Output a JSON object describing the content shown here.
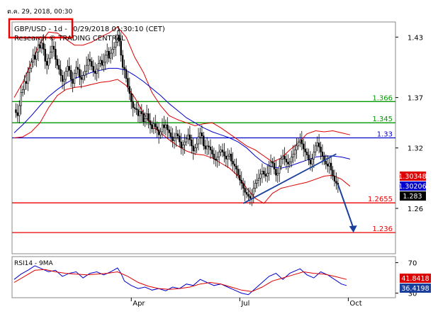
{
  "header": {
    "date_stamp": "ต.ค. 29, 2018, 00:30",
    "instrument": "GBP/USD - 1d -",
    "timestamp": "0/29/2018 01:30:10 (CET)",
    "source": "Research © TRADING CENTRAL"
  },
  "colors": {
    "background": "#f4f4f4",
    "candle": "#000000",
    "bollinger": "#dd0000",
    "moving_average": "#0000cc",
    "support_line": "#ee0000",
    "resistance_line": "#009900",
    "pivot_line": "#0000cc",
    "trend_arrow": "#1a3f9c",
    "highlight_box": "#ee0000"
  },
  "chart_data": [
    {
      "type": "candlestick",
      "title": "GBP/USD - 1d -",
      "ylim": [
        1.215,
        1.445
      ],
      "y_ticks": [
        1.43,
        1.37,
        1.32,
        1.26
      ],
      "x_tick_labels": [
        "Apr",
        "Jul",
        "Oct"
      ],
      "bars_per_month": 21,
      "close_series": [
        1.358,
        1.355,
        1.352,
        1.362,
        1.375,
        1.378,
        1.386,
        1.384,
        1.395,
        1.399,
        1.405,
        1.412,
        1.408,
        1.415,
        1.422,
        1.419,
        1.424,
        1.418,
        1.406,
        1.402,
        1.409,
        1.415,
        1.421,
        1.418,
        1.408,
        1.402,
        1.398,
        1.392,
        1.386,
        1.388,
        1.396,
        1.401,
        1.397,
        1.388,
        1.384,
        1.394,
        1.4,
        1.398,
        1.39,
        1.388,
        1.392,
        1.396,
        1.402,
        1.408,
        1.406,
        1.401,
        1.396,
        1.394,
        1.398,
        1.404,
        1.407,
        1.402,
        1.405,
        1.412,
        1.416,
        1.409,
        1.414,
        1.418,
        1.42,
        1.425,
        1.432,
        1.426,
        1.412,
        1.4,
        1.398,
        1.389,
        1.381,
        1.374,
        1.366,
        1.36,
        1.359,
        1.358,
        1.352,
        1.356,
        1.354,
        1.346,
        1.349,
        1.354,
        1.347,
        1.343,
        1.339,
        1.344,
        1.341,
        1.338,
        1.333,
        1.336,
        1.343,
        1.34,
        1.343,
        1.338,
        1.335,
        1.331,
        1.327,
        1.33,
        1.334,
        1.332,
        1.326,
        1.32,
        1.323,
        1.326,
        1.329,
        1.333,
        1.328,
        1.322,
        1.317,
        1.32,
        1.324,
        1.331,
        1.335,
        1.332,
        1.322,
        1.319,
        1.322,
        1.321,
        1.318,
        1.314,
        1.309,
        1.308,
        1.311,
        1.316,
        1.318,
        1.316,
        1.312,
        1.309,
        1.312,
        1.314,
        1.307,
        1.304,
        1.302,
        1.299,
        1.293,
        1.288,
        1.285,
        1.28,
        1.276,
        1.274,
        1.272,
        1.27,
        1.274,
        1.28,
        1.285,
        1.288,
        1.29,
        1.294,
        1.297,
        1.294,
        1.292,
        1.295,
        1.302,
        1.306,
        1.305,
        1.299,
        1.293,
        1.295,
        1.302,
        1.309,
        1.312,
        1.309,
        1.306,
        1.304,
        1.306,
        1.311,
        1.314,
        1.318,
        1.322,
        1.326,
        1.328,
        1.324,
        1.319,
        1.316,
        1.313,
        1.308,
        1.304,
        1.309,
        1.316,
        1.322,
        1.325,
        1.321,
        1.316,
        1.312,
        1.307,
        1.304,
        1.302,
        1.305,
        1.298,
        1.292,
        1.287,
        1.285,
        1.283
      ],
      "moving_average": [
        [
          0,
          1.335
        ],
        [
          5,
          1.343
        ],
        [
          10,
          1.352
        ],
        [
          15,
          1.362
        ],
        [
          20,
          1.371
        ],
        [
          25,
          1.378
        ],
        [
          30,
          1.384
        ],
        [
          35,
          1.389
        ],
        [
          40,
          1.392
        ],
        [
          45,
          1.395
        ],
        [
          50,
          1.397
        ],
        [
          55,
          1.399
        ],
        [
          60,
          1.399
        ],
        [
          65,
          1.397
        ],
        [
          70,
          1.392
        ],
        [
          75,
          1.386
        ],
        [
          80,
          1.379
        ],
        [
          85,
          1.372
        ],
        [
          90,
          1.364
        ],
        [
          95,
          1.357
        ],
        [
          100,
          1.35
        ],
        [
          105,
          1.345
        ],
        [
          110,
          1.34
        ],
        [
          115,
          1.336
        ],
        [
          120,
          1.333
        ],
        [
          125,
          1.33
        ],
        [
          130,
          1.326
        ],
        [
          135,
          1.32
        ],
        [
          140,
          1.312
        ],
        [
          145,
          1.305
        ],
        [
          150,
          1.301
        ],
        [
          155,
          1.3
        ],
        [
          160,
          1.302
        ],
        [
          165,
          1.305
        ],
        [
          170,
          1.308
        ],
        [
          175,
          1.311
        ],
        [
          180,
          1.312
        ],
        [
          185,
          1.312
        ],
        [
          190,
          1.311
        ],
        [
          195,
          1.309
        ]
      ],
      "bollinger_upper": [
        [
          0,
          1.37
        ],
        [
          5,
          1.385
        ],
        [
          10,
          1.405
        ],
        [
          15,
          1.424
        ],
        [
          20,
          1.435
        ],
        [
          25,
          1.434
        ],
        [
          30,
          1.428
        ],
        [
          35,
          1.422
        ],
        [
          40,
          1.422
        ],
        [
          45,
          1.425
        ],
        [
          50,
          1.43
        ],
        [
          55,
          1.434
        ],
        [
          60,
          1.44
        ],
        [
          65,
          1.43
        ],
        [
          70,
          1.41
        ],
        [
          75,
          1.395
        ],
        [
          80,
          1.375
        ],
        [
          85,
          1.362
        ],
        [
          90,
          1.352
        ],
        [
          95,
          1.348
        ],
        [
          100,
          1.345
        ],
        [
          105,
          1.342
        ],
        [
          110,
          1.344
        ],
        [
          115,
          1.345
        ],
        [
          120,
          1.34
        ],
        [
          125,
          1.334
        ],
        [
          130,
          1.328
        ],
        [
          135,
          1.322
        ],
        [
          140,
          1.318
        ],
        [
          145,
          1.312
        ],
        [
          150,
          1.306
        ],
        [
          155,
          1.31
        ],
        [
          160,
          1.318
        ],
        [
          165,
          1.325
        ],
        [
          170,
          1.334
        ],
        [
          175,
          1.337
        ],
        [
          180,
          1.336
        ],
        [
          185,
          1.337
        ],
        [
          190,
          1.335
        ],
        [
          195,
          1.333
        ]
      ],
      "bollinger_lower": [
        [
          0,
          1.33
        ],
        [
          5,
          1.331
        ],
        [
          10,
          1.336
        ],
        [
          15,
          1.345
        ],
        [
          20,
          1.36
        ],
        [
          25,
          1.372
        ],
        [
          30,
          1.378
        ],
        [
          35,
          1.38
        ],
        [
          40,
          1.381
        ],
        [
          45,
          1.383
        ],
        [
          50,
          1.385
        ],
        [
          55,
          1.386
        ],
        [
          60,
          1.388
        ],
        [
          65,
          1.382
        ],
        [
          70,
          1.37
        ],
        [
          75,
          1.355
        ],
        [
          80,
          1.342
        ],
        [
          85,
          1.335
        ],
        [
          90,
          1.328
        ],
        [
          95,
          1.322
        ],
        [
          100,
          1.317
        ],
        [
          105,
          1.314
        ],
        [
          110,
          1.313
        ],
        [
          115,
          1.31
        ],
        [
          120,
          1.305
        ],
        [
          125,
          1.3
        ],
        [
          130,
          1.292
        ],
        [
          135,
          1.28
        ],
        [
          140,
          1.27
        ],
        [
          145,
          1.265
        ],
        [
          150,
          1.275
        ],
        [
          155,
          1.28
        ],
        [
          160,
          1.282
        ],
        [
          165,
          1.284
        ],
        [
          170,
          1.286
        ],
        [
          175,
          1.289
        ],
        [
          180,
          1.292
        ],
        [
          185,
          1.293
        ],
        [
          190,
          1.289
        ],
        [
          195,
          1.282
        ]
      ],
      "levels": [
        {
          "value": 1.366,
          "label": "1.366",
          "kind": "resistance"
        },
        {
          "value": 1.345,
          "label": "1.345",
          "kind": "resistance"
        },
        {
          "value": 1.33,
          "label": "1.33",
          "kind": "pivot"
        },
        {
          "value": 1.2655,
          "label": "1.2655",
          "kind": "support"
        },
        {
          "value": 1.236,
          "label": "1.236",
          "kind": "support"
        }
      ],
      "value_tags": [
        {
          "value": 1.30348,
          "label": "1.30348",
          "color": "#dd0000"
        },
        {
          "value": 1.30206,
          "label": "1.30206",
          "color": "#0000cc"
        },
        {
          "value": 1.283,
          "label": "1.283",
          "color": "#000000"
        }
      ],
      "trendline": {
        "start": [
          133,
          1.265
        ],
        "end": [
          187,
          1.314
        ]
      },
      "forecast_arrow": {
        "start": [
          188,
          1.284
        ],
        "end": [
          197,
          1.236
        ]
      }
    },
    {
      "type": "line",
      "title": "RSI14 - 9MA",
      "ylim": [
        24,
        78
      ],
      "y_ticks": [
        70,
        30
      ],
      "series": [
        {
          "name": "RSI14",
          "color": "#0000cc",
          "points": [
            [
              0,
              48
            ],
            [
              4,
              55
            ],
            [
              8,
              60
            ],
            [
              12,
              66
            ],
            [
              16,
              62
            ],
            [
              20,
              58
            ],
            [
              24,
              60
            ],
            [
              28,
              52
            ],
            [
              32,
              56
            ],
            [
              36,
              58
            ],
            [
              40,
              50
            ],
            [
              44,
              56
            ],
            [
              48,
              58
            ],
            [
              52,
              54
            ],
            [
              56,
              58
            ],
            [
              60,
              63
            ],
            [
              62,
              56
            ],
            [
              64,
              46
            ],
            [
              68,
              40
            ],
            [
              72,
              36
            ],
            [
              76,
              38
            ],
            [
              80,
              34
            ],
            [
              84,
              36
            ],
            [
              88,
              33
            ],
            [
              92,
              38
            ],
            [
              96,
              36
            ],
            [
              100,
              42
            ],
            [
              104,
              40
            ],
            [
              108,
              48
            ],
            [
              112,
              44
            ],
            [
              116,
              40
            ],
            [
              120,
              42
            ],
            [
              124,
              38
            ],
            [
              128,
              34
            ],
            [
              132,
              30
            ],
            [
              136,
              28
            ],
            [
              140,
              36
            ],
            [
              144,
              44
            ],
            [
              148,
              52
            ],
            [
              152,
              56
            ],
            [
              156,
              48
            ],
            [
              160,
              56
            ],
            [
              164,
              60
            ],
            [
              166,
              62
            ],
            [
              170,
              54
            ],
            [
              174,
              50
            ],
            [
              178,
              58
            ],
            [
              182,
              54
            ],
            [
              186,
              48
            ],
            [
              190,
              42
            ],
            [
              193,
              40
            ]
          ]
        },
        {
          "name": "9MA",
          "color": "#dd0000",
          "points": [
            [
              0,
              44
            ],
            [
              6,
              52
            ],
            [
              12,
              60
            ],
            [
              18,
              61
            ],
            [
              24,
              58
            ],
            [
              30,
              56
            ],
            [
              36,
              55
            ],
            [
              42,
              54
            ],
            [
              48,
              55
            ],
            [
              54,
              56
            ],
            [
              60,
              58
            ],
            [
              66,
              52
            ],
            [
              72,
              44
            ],
            [
              78,
              39
            ],
            [
              84,
              36
            ],
            [
              90,
              35
            ],
            [
              96,
              36
            ],
            [
              102,
              38
            ],
            [
              108,
              42
            ],
            [
              114,
              44
            ],
            [
              120,
              42
            ],
            [
              126,
              38
            ],
            [
              132,
              34
            ],
            [
              138,
              32
            ],
            [
              144,
              38
            ],
            [
              150,
              46
            ],
            [
              156,
              50
            ],
            [
              162,
              54
            ],
            [
              168,
              58
            ],
            [
              174,
              56
            ],
            [
              180,
              55
            ],
            [
              186,
              52
            ],
            [
              193,
              48
            ]
          ]
        }
      ],
      "value_tags": [
        {
          "value": 41.8418,
          "label": "41.8418",
          "color": "#dd0000"
        },
        {
          "value": 36.4198,
          "label": "36.4198",
          "color": "#1a3f9c"
        }
      ]
    }
  ]
}
